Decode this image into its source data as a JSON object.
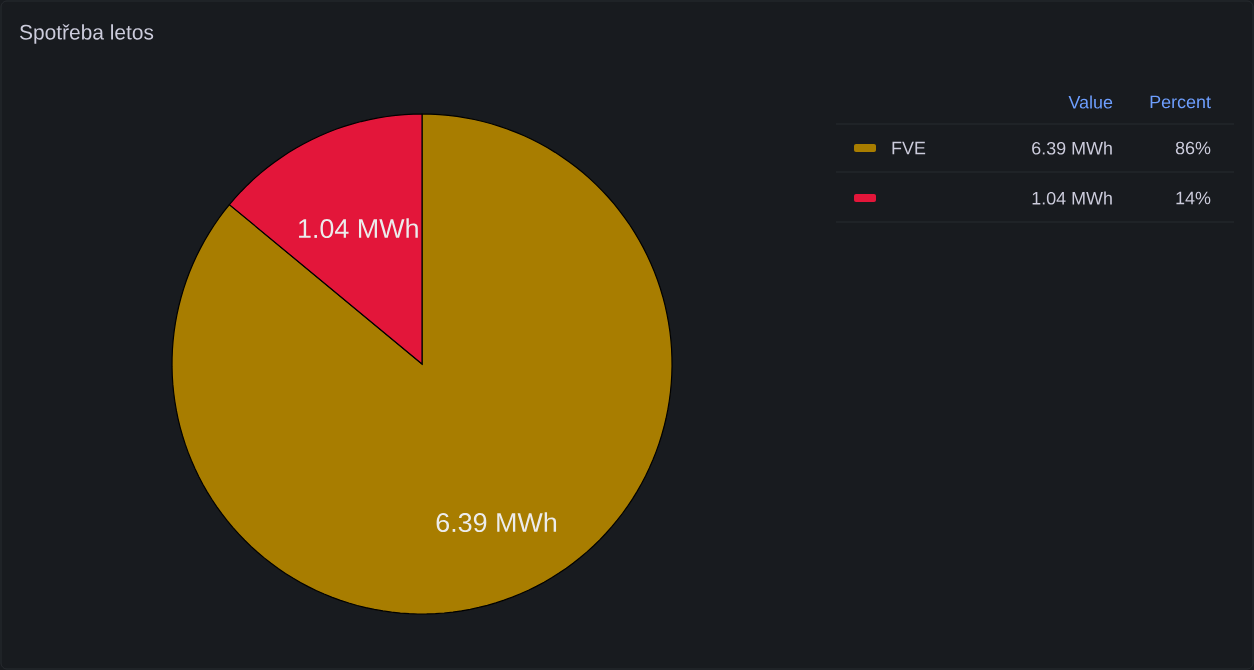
{
  "chart_data": {
    "type": "pie",
    "title": "Spotřeba letos",
    "categories": [
      "FVE",
      null
    ],
    "values": [
      6.39,
      1.04
    ],
    "colors": [
      "#a87d00",
      "#e3163a"
    ],
    "value_labels": [
      "6.39 MWh",
      "1.04 MWh"
    ],
    "legend": "right",
    "annotations": [
      "Value",
      "Percent",
      "86%",
      "14%"
    ]
  }
}
